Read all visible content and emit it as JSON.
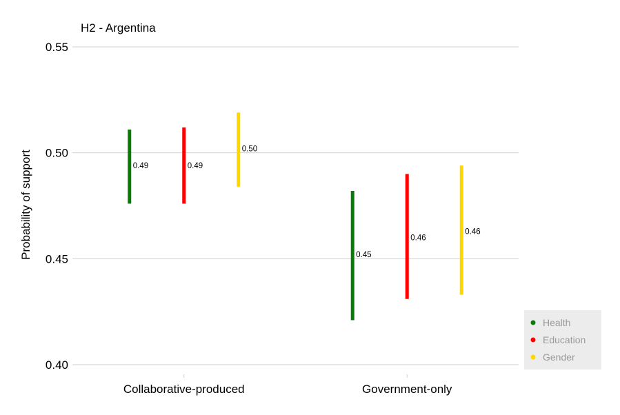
{
  "chart_data": {
    "type": "errorbar",
    "title": "H2 - Argentina",
    "xlabel": "",
    "ylabel": "Probability of support",
    "ylim": [
      0.4,
      0.55
    ],
    "yticks": [
      "0.40",
      "0.45",
      "0.50",
      "0.55"
    ],
    "categories": [
      "Collaborative-produced",
      "Government-only"
    ],
    "series": [
      {
        "name": "Health",
        "color": "#0b7a0b",
        "estimates": [
          0.494,
          0.452
        ],
        "lower": [
          0.476,
          0.421
        ],
        "upper": [
          0.511,
          0.482
        ],
        "labels": [
          "0.49",
          "0.45"
        ]
      },
      {
        "name": "Education",
        "color": "#ff0000",
        "estimates": [
          0.494,
          0.46
        ],
        "lower": [
          0.476,
          0.431
        ],
        "upper": [
          0.512,
          0.49
        ],
        "labels": [
          "0.49",
          "0.46"
        ]
      },
      {
        "name": "Gender",
        "color": "#ffd700",
        "estimates": [
          0.502,
          0.463
        ],
        "lower": [
          0.484,
          0.433
        ],
        "upper": [
          0.519,
          0.494
        ],
        "labels": [
          "0.50",
          "0.46"
        ]
      }
    ],
    "grid": true,
    "legend_position": "bottom-right"
  }
}
